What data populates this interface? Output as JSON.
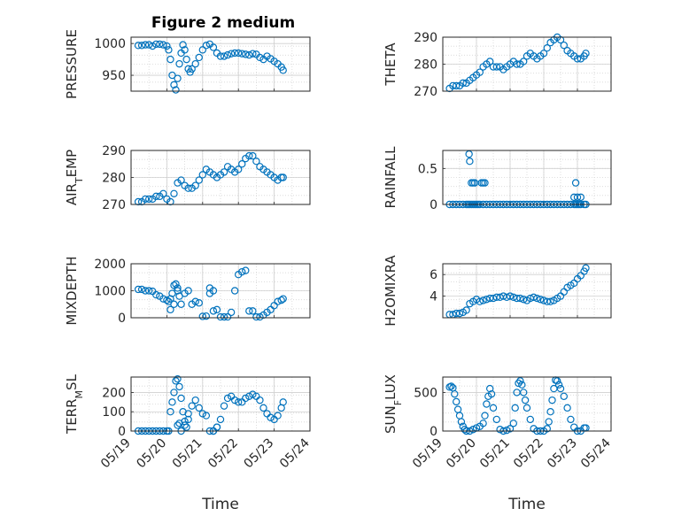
{
  "figure": {
    "title": "Figure 2 medium"
  },
  "style": {
    "marker_color": "#0072BD",
    "axis_color": "#262626",
    "grid_color": "#d6d6d6"
  },
  "chart_data": [
    {
      "type": "scatter",
      "ylabel": "PRESSURE",
      "xlabel": "",
      "title": "Figure 2 medium",
      "ylim": [
        925,
        1010
      ],
      "yticks": [
        950,
        1000
      ],
      "ytick_labels": [
        "950",
        "1000"
      ],
      "xlim": [
        0,
        5
      ],
      "xticks": [
        0,
        1,
        2,
        3,
        4,
        5
      ],
      "xtick_labels": [
        "05/19",
        "05/20",
        "05/21",
        "05/22",
        "05/23",
        "05/24"
      ],
      "show_xticklabels": false,
      "x": [
        0.2,
        0.3,
        0.4,
        0.5,
        0.6,
        0.7,
        0.8,
        0.9,
        1.0,
        1.05,
        1.1,
        1.15,
        1.2,
        1.25,
        1.3,
        1.35,
        1.4,
        1.45,
        1.5,
        1.55,
        1.6,
        1.65,
        1.7,
        1.8,
        1.9,
        2.0,
        2.1,
        2.2,
        2.3,
        2.4,
        2.5,
        2.6,
        2.7,
        2.8,
        2.9,
        3.0,
        3.1,
        3.2,
        3.3,
        3.4,
        3.5,
        3.6,
        3.7,
        3.8,
        3.9,
        4.0,
        4.1,
        4.2,
        4.25
      ],
      "y": [
        997,
        997,
        998,
        998,
        996,
        999,
        999,
        998,
        996,
        990,
        975,
        950,
        935,
        927,
        945,
        968,
        985,
        998,
        990,
        975,
        960,
        955,
        960,
        968,
        978,
        990,
        997,
        999,
        994,
        985,
        980,
        980,
        982,
        984,
        985,
        985,
        984,
        983,
        982,
        984,
        983,
        978,
        975,
        980,
        976,
        972,
        968,
        963,
        958
      ]
    },
    {
      "type": "scatter",
      "ylabel": "THETA",
      "xlabel": "",
      "ylim": [
        270,
        290
      ],
      "yticks": [
        270,
        280,
        290
      ],
      "ytick_labels": [
        "270",
        "280",
        "290"
      ],
      "xlim": [
        0,
        5
      ],
      "xticks": [
        0,
        1,
        2,
        3,
        4,
        5
      ],
      "xtick_labels": [
        "05/19",
        "05/20",
        "05/21",
        "05/22",
        "05/23",
        "05/24"
      ],
      "show_xticklabels": false,
      "x": [
        0.2,
        0.3,
        0.4,
        0.5,
        0.6,
        0.7,
        0.8,
        0.9,
        1.0,
        1.1,
        1.2,
        1.3,
        1.4,
        1.5,
        1.6,
        1.7,
        1.8,
        1.9,
        2.0,
        2.1,
        2.2,
        2.3,
        2.4,
        2.5,
        2.6,
        2.7,
        2.8,
        2.9,
        3.0,
        3.1,
        3.2,
        3.3,
        3.4,
        3.5,
        3.6,
        3.7,
        3.8,
        3.9,
        4.0,
        4.1,
        4.2,
        4.25
      ],
      "y": [
        271,
        272,
        272,
        272,
        273,
        273,
        274,
        275,
        276,
        277,
        279,
        280,
        281,
        279,
        279,
        279,
        278,
        279,
        280,
        281,
        280,
        280,
        281,
        283,
        284,
        283,
        282,
        283,
        284,
        286,
        288,
        289,
        290,
        289,
        287,
        285,
        284,
        283,
        282,
        282,
        283,
        284
      ]
    },
    {
      "type": "scatter",
      "ylabel": "AIR_TEMP",
      "xlabel": "",
      "ylim": [
        270,
        290
      ],
      "yticks": [
        270,
        280,
        290
      ],
      "ytick_labels": [
        "270",
        "280",
        "290"
      ],
      "xlim": [
        0,
        5
      ],
      "xticks": [
        0,
        1,
        2,
        3,
        4,
        5
      ],
      "xtick_labels": [
        "05/19",
        "05/20",
        "05/21",
        "05/22",
        "05/23",
        "05/24"
      ],
      "show_xticklabels": false,
      "x": [
        0.2,
        0.3,
        0.4,
        0.5,
        0.6,
        0.7,
        0.8,
        0.9,
        1.0,
        1.1,
        1.2,
        1.3,
        1.4,
        1.5,
        1.6,
        1.7,
        1.8,
        1.9,
        2.0,
        2.1,
        2.2,
        2.3,
        2.4,
        2.5,
        2.6,
        2.7,
        2.8,
        2.9,
        3.0,
        3.1,
        3.2,
        3.3,
        3.4,
        3.5,
        3.6,
        3.7,
        3.8,
        3.9,
        4.0,
        4.1,
        4.2,
        4.25
      ],
      "y": [
        271,
        271,
        272,
        272,
        272,
        273,
        273,
        274,
        272,
        271,
        274,
        278,
        279,
        277,
        276,
        276,
        277,
        279,
        281,
        283,
        282,
        281,
        280,
        281,
        282,
        284,
        283,
        282,
        283,
        285,
        287,
        288,
        288,
        286,
        284,
        283,
        282,
        281,
        280,
        279,
        280,
        280
      ]
    },
    {
      "type": "scatter",
      "ylabel": "RAINFALL",
      "xlabel": "",
      "ylim": [
        0,
        0.75
      ],
      "yticks": [
        0,
        0.5
      ],
      "ytick_labels": [
        "0",
        "0.5"
      ],
      "xlim": [
        0,
        5
      ],
      "xticks": [
        0,
        1,
        2,
        3,
        4,
        5
      ],
      "xtick_labels": [
        "05/19",
        "05/20",
        "05/21",
        "05/22",
        "05/23",
        "05/24"
      ],
      "show_xticklabels": false,
      "x": [
        0.2,
        0.3,
        0.4,
        0.5,
        0.6,
        0.7,
        0.75,
        0.8,
        0.85,
        0.9,
        0.95,
        1.0,
        1.05,
        1.1,
        1.2,
        1.3,
        1.4,
        1.5,
        1.6,
        1.7,
        1.8,
        1.9,
        2.0,
        2.1,
        2.2,
        2.3,
        2.4,
        2.5,
        2.6,
        2.7,
        2.8,
        2.9,
        3.0,
        3.1,
        3.2,
        3.3,
        3.4,
        3.5,
        3.6,
        3.7,
        3.8,
        3.9,
        3.95,
        4.0,
        4.05,
        4.1,
        4.2,
        4.25,
        0.78,
        0.8,
        0.85,
        0.9,
        0.95,
        1.15,
        1.2,
        1.25,
        3.95,
        4.0,
        3.9,
        4.1
      ],
      "y": [
        0,
        0,
        0,
        0,
        0,
        0,
        0,
        0,
        0,
        0,
        0,
        0,
        0,
        0,
        0,
        0,
        0,
        0,
        0,
        0,
        0,
        0,
        0,
        0,
        0,
        0,
        0,
        0,
        0,
        0,
        0,
        0,
        0,
        0,
        0,
        0,
        0,
        0,
        0,
        0,
        0,
        0,
        0,
        0,
        0,
        0,
        0,
        0,
        0.7,
        0.6,
        0.3,
        0.3,
        0.3,
        0.3,
        0.3,
        0.3,
        0.3,
        0.1,
        0.1,
        0.1
      ]
    },
    {
      "type": "scatter",
      "ylabel": "MIXDEPTH",
      "xlabel": "",
      "ylim": [
        0,
        2000
      ],
      "yticks": [
        0,
        1000,
        2000
      ],
      "ytick_labels": [
        "0",
        "1000",
        "2000"
      ],
      "xlim": [
        0,
        5
      ],
      "xticks": [
        0,
        1,
        2,
        3,
        4,
        5
      ],
      "xtick_labels": [
        "05/19",
        "05/20",
        "05/21",
        "05/22",
        "05/23",
        "05/24"
      ],
      "show_xticklabels": false,
      "x": [
        0.2,
        0.3,
        0.4,
        0.5,
        0.6,
        0.7,
        0.8,
        0.9,
        1.0,
        1.05,
        1.1,
        1.15,
        1.2,
        1.25,
        1.3,
        1.35,
        1.4,
        1.5,
        1.6,
        1.7,
        1.8,
        1.9,
        2.0,
        2.1,
        2.2,
        2.3,
        2.4,
        2.5,
        2.6,
        2.7,
        2.8,
        2.9,
        3.0,
        3.1,
        3.2,
        3.3,
        3.4,
        3.5,
        3.6,
        3.7,
        3.8,
        3.9,
        4.0,
        4.1,
        4.2,
        4.25,
        1.1,
        1.2,
        1.3,
        2.2,
        2.3
      ],
      "y": [
        1050,
        1050,
        1000,
        1000,
        980,
        850,
        800,
        700,
        650,
        600,
        700,
        900,
        1200,
        1250,
        1100,
        800,
        500,
        900,
        1000,
        500,
        600,
        550,
        50,
        60,
        900,
        1000,
        300,
        30,
        30,
        30,
        200,
        1000,
        1600,
        1700,
        1750,
        250,
        250,
        30,
        30,
        100,
        200,
        300,
        450,
        600,
        650,
        700,
        300,
        500,
        1000,
        1100,
        250
      ]
    },
    {
      "type": "scatter",
      "ylabel": "H2OMIXRA",
      "xlabel": "",
      "ylim": [
        2,
        7
      ],
      "yticks": [
        4,
        6
      ],
      "ytick_labels": [
        "4",
        "6"
      ],
      "xlim": [
        0,
        5
      ],
      "xticks": [
        0,
        1,
        2,
        3,
        4,
        5
      ],
      "xtick_labels": [
        "05/19",
        "05/20",
        "05/21",
        "05/22",
        "05/23",
        "05/24"
      ],
      "show_xticklabels": false,
      "x": [
        0.2,
        0.3,
        0.4,
        0.5,
        0.6,
        0.7,
        0.8,
        0.9,
        1.0,
        1.1,
        1.2,
        1.3,
        1.4,
        1.5,
        1.6,
        1.7,
        1.8,
        1.9,
        2.0,
        2.1,
        2.2,
        2.3,
        2.4,
        2.5,
        2.6,
        2.7,
        2.8,
        2.9,
        3.0,
        3.1,
        3.2,
        3.3,
        3.4,
        3.5,
        3.6,
        3.7,
        3.8,
        3.9,
        4.0,
        4.1,
        4.2,
        4.25
      ],
      "y": [
        2.3,
        2.3,
        2.4,
        2.4,
        2.5,
        2.7,
        3.3,
        3.5,
        3.7,
        3.5,
        3.6,
        3.7,
        3.8,
        3.8,
        3.9,
        3.9,
        4.0,
        3.9,
        4.0,
        3.9,
        3.8,
        3.8,
        3.7,
        3.6,
        3.8,
        3.9,
        3.8,
        3.7,
        3.6,
        3.5,
        3.5,
        3.6,
        3.8,
        4.0,
        4.4,
        4.8,
        5.0,
        5.2,
        5.6,
        5.9,
        6.3,
        6.6
      ]
    },
    {
      "type": "scatter",
      "ylabel": "TERR_MSL",
      "xlabel": "Time",
      "ylim": [
        0,
        280
      ],
      "yticks": [
        0,
        100,
        200
      ],
      "ytick_labels": [
        "0",
        "100",
        "200"
      ],
      "xlim": [
        0,
        5
      ],
      "xticks": [
        0,
        1,
        2,
        3,
        4,
        5
      ],
      "xtick_labels": [
        "05/19",
        "05/20",
        "05/21",
        "05/22",
        "05/23",
        "05/24"
      ],
      "show_xticklabels": true,
      "x": [
        0.2,
        0.3,
        0.4,
        0.5,
        0.6,
        0.7,
        0.8,
        0.9,
        1.0,
        1.05,
        1.1,
        1.15,
        1.2,
        1.25,
        1.3,
        1.35,
        1.4,
        1.45,
        1.5,
        1.55,
        1.6,
        1.7,
        1.8,
        1.9,
        2.0,
        2.1,
        2.2,
        2.3,
        2.4,
        2.5,
        2.6,
        2.7,
        2.8,
        2.9,
        3.0,
        3.1,
        3.2,
        3.3,
        3.4,
        3.5,
        3.6,
        3.7,
        3.8,
        3.9,
        4.0,
        4.1,
        4.2,
        4.25,
        1.3,
        1.35,
        1.4,
        1.5,
        1.6,
        2.3,
        2.4
      ],
      "y": [
        0,
        0,
        0,
        0,
        0,
        0,
        0,
        0,
        0,
        0,
        100,
        150,
        200,
        260,
        270,
        230,
        170,
        100,
        50,
        20,
        60,
        130,
        160,
        120,
        90,
        80,
        0,
        0,
        20,
        60,
        130,
        170,
        180,
        160,
        150,
        150,
        170,
        180,
        190,
        180,
        160,
        120,
        90,
        70,
        60,
        80,
        120,
        150,
        30,
        40,
        0,
        30,
        90,
        0,
        20
      ]
    },
    {
      "type": "scatter",
      "ylabel": "SUN_FLUX",
      "xlabel": "Time",
      "ylim": [
        0,
        700
      ],
      "yticks": [
        0,
        500
      ],
      "ytick_labels": [
        "0",
        "500"
      ],
      "xlim": [
        0,
        5
      ],
      "xticks": [
        0,
        1,
        2,
        3,
        4,
        5
      ],
      "xtick_labels": [
        "05/19",
        "05/20",
        "05/21",
        "05/22",
        "05/23",
        "05/24"
      ],
      "show_xticklabels": true,
      "x": [
        0.2,
        0.25,
        0.3,
        0.35,
        0.4,
        0.45,
        0.5,
        0.55,
        0.6,
        0.65,
        0.7,
        0.8,
        0.9,
        1.0,
        1.1,
        1.2,
        1.25,
        1.3,
        1.35,
        1.4,
        1.45,
        1.5,
        1.6,
        1.7,
        1.8,
        1.9,
        2.0,
        2.1,
        2.15,
        2.2,
        2.25,
        2.3,
        2.35,
        2.4,
        2.45,
        2.5,
        2.6,
        2.7,
        2.8,
        2.9,
        3.0,
        3.1,
        3.15,
        3.2,
        3.25,
        3.3,
        3.35,
        3.4,
        3.45,
        3.5,
        3.6,
        3.7,
        3.8,
        3.9,
        4.0,
        4.1,
        4.2,
        4.25
      ],
      "y": [
        570,
        580,
        560,
        480,
        380,
        280,
        200,
        120,
        60,
        20,
        0,
        0,
        20,
        40,
        60,
        100,
        200,
        350,
        450,
        550,
        480,
        300,
        150,
        20,
        0,
        10,
        30,
        100,
        300,
        500,
        620,
        650,
        600,
        500,
        400,
        300,
        150,
        30,
        0,
        0,
        0,
        30,
        120,
        250,
        400,
        550,
        660,
        650,
        600,
        550,
        450,
        300,
        150,
        50,
        0,
        0,
        40,
        40
      ]
    }
  ]
}
